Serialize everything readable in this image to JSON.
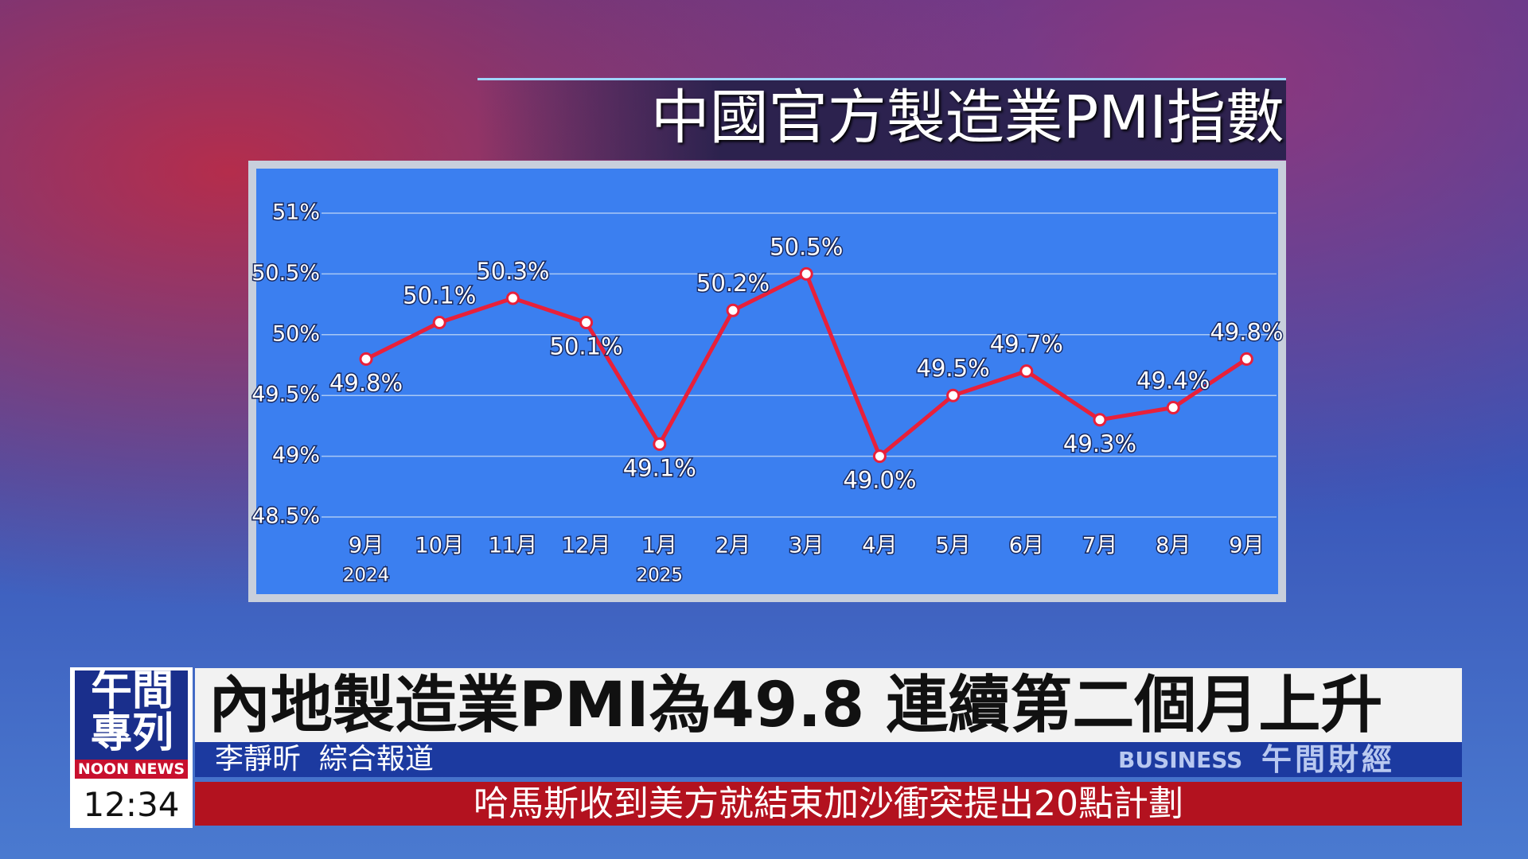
{
  "chart_data": {
    "type": "line",
    "title": "中國官方製造業PMI指數",
    "categories": [
      "9月",
      "10月",
      "11月",
      "12月",
      "1月",
      "2月",
      "3月",
      "4月",
      "5月",
      "6月",
      "7月",
      "8月",
      "9月"
    ],
    "category_years": [
      "2024",
      null,
      null,
      null,
      "2025",
      null,
      null,
      null,
      null,
      null,
      null,
      null,
      null
    ],
    "values": [
      49.8,
      50.1,
      50.3,
      50.1,
      49.1,
      50.2,
      50.5,
      49.0,
      49.5,
      49.7,
      49.3,
      49.4,
      49.8
    ],
    "value_labels": [
      "49.8%",
      "50.1%",
      "50.3%",
      "50.1%",
      "49.1%",
      "50.2%",
      "50.5%",
      "49.0%",
      "49.5%",
      "49.7%",
      "49.3%",
      "49.4%",
      "49.8%"
    ],
    "color": "#e8203a",
    "ylim": [
      48.5,
      51
    ],
    "yticks": [
      {
        "value": 48.5,
        "label": "48.5%"
      },
      {
        "value": 49,
        "label": "49%"
      },
      {
        "value": 49.5,
        "label": "49.5%"
      },
      {
        "value": 50,
        "label": "50%"
      },
      {
        "value": 50.5,
        "label": "50.5%"
      },
      {
        "value": 51,
        "label": "51%"
      }
    ],
    "grid": true
  },
  "banner": {
    "logo_top": "午間",
    "logo_bottom": "專列",
    "logo_en": "NOON NEWS",
    "headline": "內地製造業PMI為49.8 連續第二個月上升",
    "reporter": "李靜昕  綜合報道",
    "section_en": "BUSINESS",
    "section": "午間財經",
    "time": "12:34",
    "ticker": "哈馬斯收到美方就結束加沙衝突提出20點計劃"
  }
}
